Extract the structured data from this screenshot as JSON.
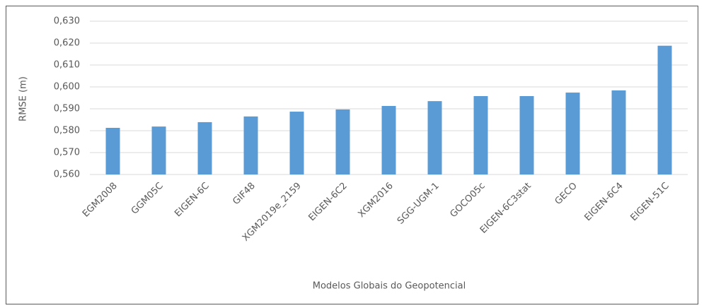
{
  "chart_data": {
    "type": "bar",
    "categories": [
      "EGM2008",
      "GGM05C",
      "EIGEN-6C",
      "GIF48",
      "XGM2019e_2159",
      "EIGEN-6C2",
      "XGM2016",
      "SGG-UGM-1",
      "GOCO05c",
      "EIGEN-6C3stat",
      "GECO",
      "EIGEN-6C4",
      "EIGEN-51C"
    ],
    "values": [
      0.5813,
      0.5819,
      0.5839,
      0.5865,
      0.5887,
      0.5897,
      0.5913,
      0.5935,
      0.5958,
      0.5958,
      0.5974,
      0.5984,
      0.6188
    ],
    "color": "#5b9bd5",
    "ylabel": "RMSE (m)",
    "xlabel": "Modelos Globais do Geopotencial",
    "ylim": [
      0.56,
      0.63
    ],
    "yticks": [
      {
        "value": 0.56,
        "label": "0,560"
      },
      {
        "value": 0.57,
        "label": "0,570"
      },
      {
        "value": 0.58,
        "label": "0,580"
      },
      {
        "value": 0.59,
        "label": "0,590"
      },
      {
        "value": 0.6,
        "label": "0,600"
      },
      {
        "value": 0.61,
        "label": "0,610"
      },
      {
        "value": 0.62,
        "label": "0,620"
      },
      {
        "value": 0.63,
        "label": "0,630"
      }
    ],
    "grid": true
  }
}
